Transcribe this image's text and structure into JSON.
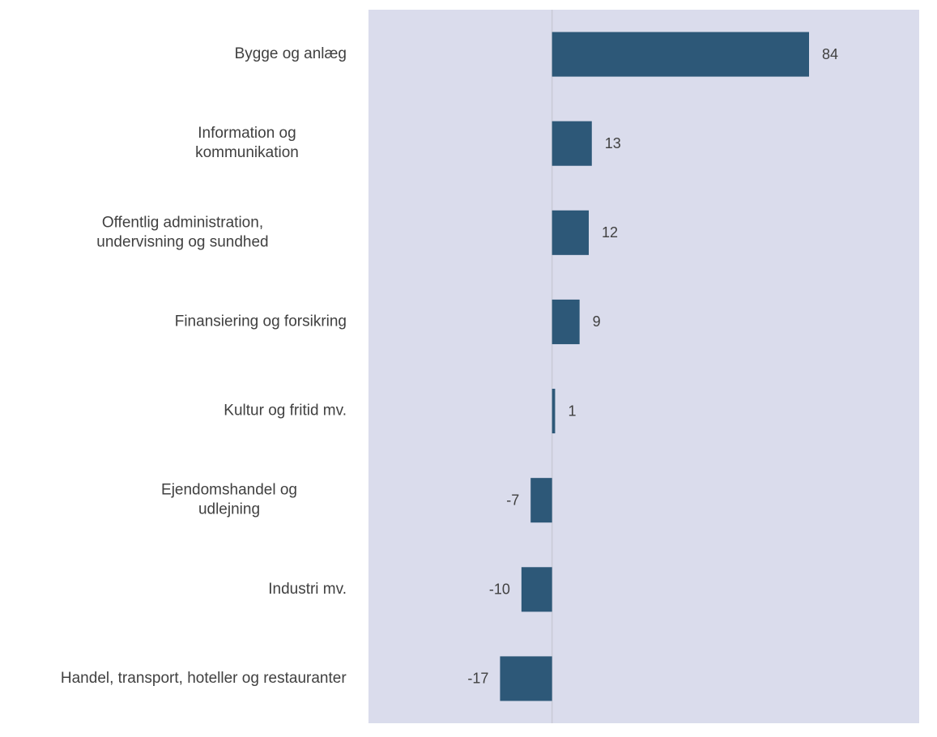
{
  "chart_data": {
    "type": "bar",
    "orientation": "horizontal",
    "categories": [
      [
        "Bygge og anlæg"
      ],
      [
        "Information og",
        "kommunikation"
      ],
      [
        "Offentlig administration,",
        "undervisning og sundhed"
      ],
      [
        "Finansiering og forsikring"
      ],
      [
        "Kultur og fritid mv."
      ],
      [
        "Ejendomshandel og",
        "udlejning"
      ],
      [
        "Industri mv."
      ],
      [
        "Handel, transport, hoteller og restauranter"
      ]
    ],
    "values": [
      84,
      13,
      12,
      9,
      1,
      -7,
      -10,
      -17
    ],
    "value_labels": [
      "84",
      "13",
      "12",
      "9",
      "1",
      "-7",
      "-10",
      "-17"
    ],
    "title": "",
    "xlabel": "",
    "ylabel": "",
    "xlim": [
      -60,
      120
    ],
    "grid": false,
    "legend": "none"
  },
  "colors": {
    "bar": "#2d5878",
    "plot_background": "#dadcec",
    "zero_line": "#c9cbd6"
  }
}
